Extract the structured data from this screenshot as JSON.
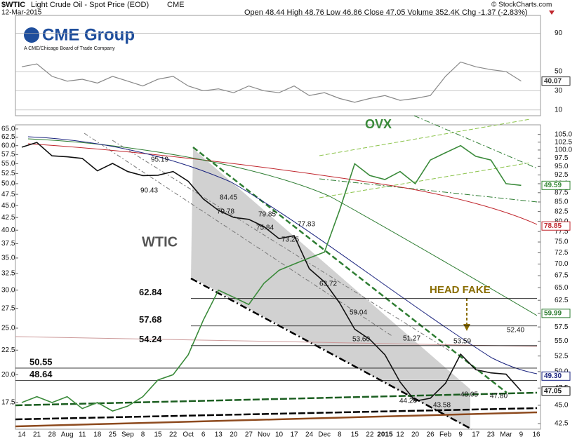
{
  "header": {
    "symbol": "$WTIC",
    "title": "Light Crude Oil - Spot Price (EOD)",
    "exchange": "CME",
    "date": "12-Mar-2015",
    "quote": "Open 48.44 High 48.76 Low 46.86 Close 47.05 Volume 352.4K Chg -1.37 (-2.83%)",
    "credit": "© StockCharts.com"
  },
  "logo": {
    "name": "CME Group",
    "tagline": "A CME/Chicago Board of Trade Company"
  },
  "chart_data": [
    {
      "type": "line",
      "color": "#888888",
      "values": [
        55,
        58,
        45,
        40,
        42,
        38,
        45,
        40,
        35,
        42,
        45,
        35,
        30,
        32,
        28,
        35,
        30,
        28,
        35,
        25,
        28,
        22,
        18,
        22,
        25,
        20,
        22,
        25,
        45,
        60,
        55,
        52,
        50,
        40.07,
        null
      ],
      "ylim": [
        4,
        108.5
      ],
      "yticks": [
        90,
        50,
        30,
        10
      ]
    },
    {
      "type": "line",
      "log_scale": true,
      "grid": false,
      "categories": [
        "14",
        "21",
        "28",
        "Aug",
        "11",
        "18",
        "25",
        "Sep",
        "8",
        "15",
        "22",
        "Oct",
        "6",
        "13",
        "20",
        "27",
        "Nov",
        "10",
        "17",
        "24",
        "Dec",
        "8",
        "15",
        "22",
        "2015",
        "12",
        "20",
        "26",
        "Feb",
        "9",
        "17",
        "23",
        "Mar",
        "9",
        "16"
      ],
      "series": [
        {
          "name": "WTIC",
          "color": "#111111",
          "axis": "y2",
          "values": [
            100.9,
            102.4,
            98.2,
            97.9,
            97.4,
            93.7,
            95.9,
            93.5,
            92.3,
            92.4,
            93.5,
            90.7,
            85.8,
            82.8,
            81.0,
            80.5,
            78.7,
            75.8,
            76.5,
            69,
            66.2,
            62,
            57.1,
            55.3,
            52.7,
            48.4,
            45.6,
            46,
            48.2,
            52.8,
            50.3,
            49.8,
            49.6,
            47.05,
            null
          ]
        },
        {
          "name": "OVX",
          "color": "#3a8a3a",
          "values": [
            17.5,
            18,
            17.5,
            18,
            17,
            17.5,
            16.8,
            17.2,
            18,
            19.5,
            20,
            22,
            26,
            30,
            29,
            28,
            31,
            33,
            34,
            35,
            36,
            44,
            55,
            52,
            51,
            53,
            50,
            56,
            58,
            60,
            57,
            56,
            50,
            49.59,
            null
          ]
        }
      ],
      "ylim": [
        15.4,
        66.3
      ],
      "yticks": [
        17.5,
        {
          "value": 20,
          "label": "20.0"
        },
        22.5,
        {
          "value": 25,
          "label": "25.0"
        },
        27.5,
        {
          "value": 30,
          "label": "30.0"
        },
        32.5,
        {
          "value": 35,
          "label": "35.0"
        },
        37.5,
        {
          "value": 40,
          "label": "40.0"
        },
        42.5,
        {
          "value": 45,
          "label": "45.0"
        },
        47.5,
        {
          "value": 50,
          "label": "50.0"
        },
        52.5,
        {
          "value": 55,
          "label": "55.0"
        },
        57.5,
        {
          "value": 60,
          "label": "60.0"
        },
        62.5,
        {
          "value": 65,
          "label": "65.0"
        }
      ],
      "y2lim": [
        41.76,
        108.2
      ],
      "y2ticks": [
        42.5,
        {
          "value": 45,
          "label": "45.0"
        },
        47.5,
        {
          "value": 50,
          "label": "50.0"
        },
        52.5,
        {
          "value": 55,
          "label": "55.0"
        },
        57.5,
        {
          "value": 60,
          "label": "60.0"
        },
        62.5,
        {
          "value": 65,
          "label": "65.0"
        },
        67.5,
        {
          "value": 70,
          "label": "70.0"
        },
        72.5,
        {
          "value": 75,
          "label": "75.0"
        },
        77.5,
        {
          "value": 80,
          "label": "80.0"
        },
        82.5,
        {
          "value": 85,
          "label": "85.0"
        },
        87.5,
        {
          "value": 90,
          "label": "90.0"
        },
        92.5,
        {
          "value": 95,
          "label": "95.0"
        },
        97.5,
        {
          "value": 100,
          "label": "100.0"
        },
        102.5,
        {
          "value": 105,
          "label": "105.0"
        }
      ],
      "levels": [
        62.84,
        57.68,
        54.24,
        50.55,
        48.64
      ],
      "annotation": "HEAD FAKE",
      "point_labels": [
        "95.19",
        "90.43",
        "84.45",
        "79.78",
        "79.85",
        "75.84",
        "77.83",
        "73.25",
        "63.72",
        "59.04",
        "53.60",
        "51.27",
        "44.20",
        "43.58",
        "53.59",
        "48.05",
        "52.40",
        "47.80"
      ],
      "ma_values": [
        {
          "value": 78.85,
          "color": "#c0262d"
        },
        {
          "value": 59.99,
          "color": "#2e7d32"
        },
        {
          "value": 49.3,
          "label": "49.30",
          "color": "#1a237e"
        }
      ]
    }
  ]
}
